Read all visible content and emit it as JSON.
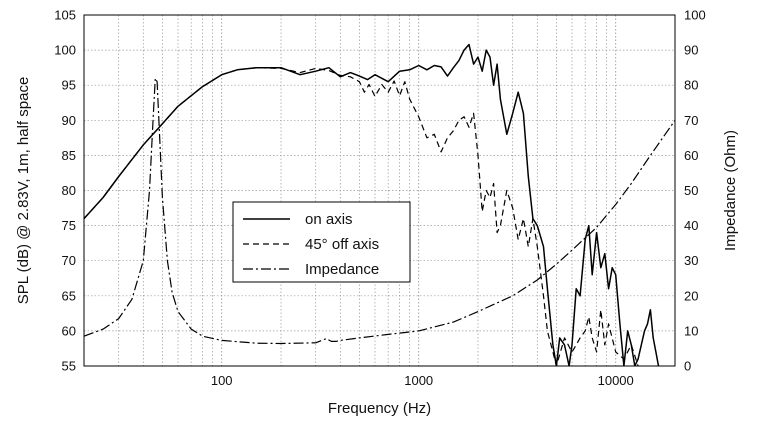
{
  "chart_data": {
    "type": "line",
    "xlabel": "Frequency (Hz)",
    "ylabel_left": "SPL (dB) @ 2.83V, 1m, half space",
    "ylabel_right": "Impedance (Ohm)",
    "x_scale": "log",
    "xlim": [
      20,
      20000
    ],
    "ylim_left": [
      55,
      105
    ],
    "ylim_right": [
      0,
      100
    ],
    "x_ticks": [
      100,
      1000,
      10000
    ],
    "x_tick_labels": [
      "100",
      "1000",
      "10000"
    ],
    "y_ticks_left": [
      55,
      60,
      65,
      70,
      75,
      80,
      85,
      90,
      95,
      100,
      105
    ],
    "y_tick_labels_left": [
      "55",
      "60",
      "65",
      "70",
      "75",
      "80",
      "85",
      "90",
      "95",
      "100",
      "105"
    ],
    "y_ticks_right": [
      0,
      10,
      20,
      30,
      40,
      50,
      60,
      70,
      80,
      90,
      100
    ],
    "y_tick_labels_right": [
      "0",
      "10",
      "20",
      "30",
      "40",
      "50",
      "60",
      "70",
      "80",
      "90",
      "100"
    ],
    "grid": true,
    "legend_position": "center-left",
    "series": [
      {
        "name": "on axis",
        "axis": "left",
        "style": "solid",
        "x": [
          20,
          25,
          30,
          40,
          50,
          60,
          70,
          80,
          100,
          120,
          150,
          200,
          250,
          300,
          350,
          400,
          450,
          500,
          550,
          600,
          700,
          800,
          900,
          1000,
          1100,
          1200,
          1300,
          1400,
          1500,
          1600,
          1700,
          1800,
          1900,
          2000,
          2100,
          2200,
          2300,
          2400,
          2500,
          2600,
          2800,
          3000,
          3200,
          3400,
          3600,
          3800,
          4000,
          4300,
          4500,
          4800,
          5000,
          5200,
          5500,
          5800,
          6000,
          6300,
          6600,
          7000,
          7300,
          7600,
          8000,
          8400,
          8800,
          9200,
          9600,
          10000,
          10500,
          11000,
          11500,
          12000,
          12500,
          13000,
          14000,
          14500,
          15000,
          15500,
          16000,
          16500,
          17000
        ],
        "y": [
          76,
          79,
          82,
          86.5,
          89.5,
          92,
          93.5,
          94.8,
          96.5,
          97.2,
          97.5,
          97.5,
          96.5,
          97,
          97.5,
          96.2,
          96.8,
          96.3,
          95.8,
          96.5,
          95.5,
          97,
          97.2,
          97.8,
          97.2,
          97.8,
          97.6,
          96.3,
          97.5,
          98.5,
          100,
          100.8,
          98,
          99,
          97,
          100,
          99,
          95,
          98,
          93,
          88,
          91,
          94,
          91,
          82,
          76,
          75,
          72,
          66,
          58,
          55,
          59,
          58,
          55,
          58,
          66,
          65,
          73,
          75,
          68,
          74,
          69,
          71,
          66,
          69,
          68,
          61,
          55,
          60,
          58,
          55,
          56,
          60,
          61,
          63,
          59,
          57,
          55,
          54
        ]
      },
      {
        "name": "45° off axis",
        "axis": "left",
        "style": "dashed",
        "x": [
          20,
          25,
          30,
          40,
          50,
          60,
          70,
          80,
          100,
          120,
          150,
          200,
          250,
          300,
          350,
          400,
          450,
          500,
          530,
          560,
          600,
          650,
          700,
          750,
          800,
          850,
          900,
          1000,
          1100,
          1200,
          1300,
          1400,
          1500,
          1600,
          1700,
          1800,
          1900,
          2000,
          2100,
          2200,
          2300,
          2400,
          2500,
          2600,
          2800,
          3000,
          3200,
          3400,
          3600,
          3800,
          4000,
          4300,
          4500,
          4800,
          5000,
          5500,
          6000,
          6300,
          6600,
          7000,
          7300,
          7600,
          8000,
          8400,
          8800,
          9200,
          10000,
          11000,
          12000,
          13000,
          14000
        ],
        "y": [
          76,
          79,
          82,
          86.5,
          89.5,
          92,
          93.5,
          94.8,
          96.5,
          97.2,
          97.5,
          97.4,
          96.8,
          97.4,
          97.1,
          96.4,
          96.2,
          95.5,
          94,
          95.1,
          93.4,
          95.1,
          94,
          95.6,
          93.5,
          95.5,
          93,
          90.5,
          87.5,
          88,
          85.5,
          87.5,
          88.5,
          90,
          90.5,
          89,
          91,
          85,
          77,
          80,
          79,
          81,
          74,
          75,
          80,
          77.5,
          73,
          76,
          72,
          76,
          72,
          65,
          60,
          57,
          55,
          59,
          57,
          58,
          59,
          60,
          62,
          59,
          57,
          63,
          58,
          61,
          57,
          56,
          58,
          55,
          54
        ]
      },
      {
        "name": "Impedance",
        "axis": "right",
        "style": "dashdot",
        "x": [
          20,
          25,
          30,
          35,
          40,
          43,
          45,
          46,
          47,
          48,
          50,
          53,
          56,
          60,
          70,
          80,
          100,
          150,
          200,
          300,
          340,
          360,
          380,
          400,
          500,
          700,
          1000,
          1500,
          2000,
          3000,
          4000,
          5000,
          6000,
          7000,
          8000,
          10000,
          12000,
          15000,
          20000
        ],
        "y": [
          8.5,
          10.5,
          13.5,
          19,
          30,
          50,
          72,
          82,
          81,
          70,
          48,
          30,
          21,
          15.5,
          10.5,
          8.5,
          7.3,
          6.5,
          6.4,
          6.6,
          7.8,
          7,
          7,
          7.3,
          8,
          9,
          10,
          12.5,
          15.5,
          20,
          24.5,
          29,
          33,
          36.5,
          39.5,
          46,
          52,
          60,
          70
        ]
      }
    ]
  }
}
